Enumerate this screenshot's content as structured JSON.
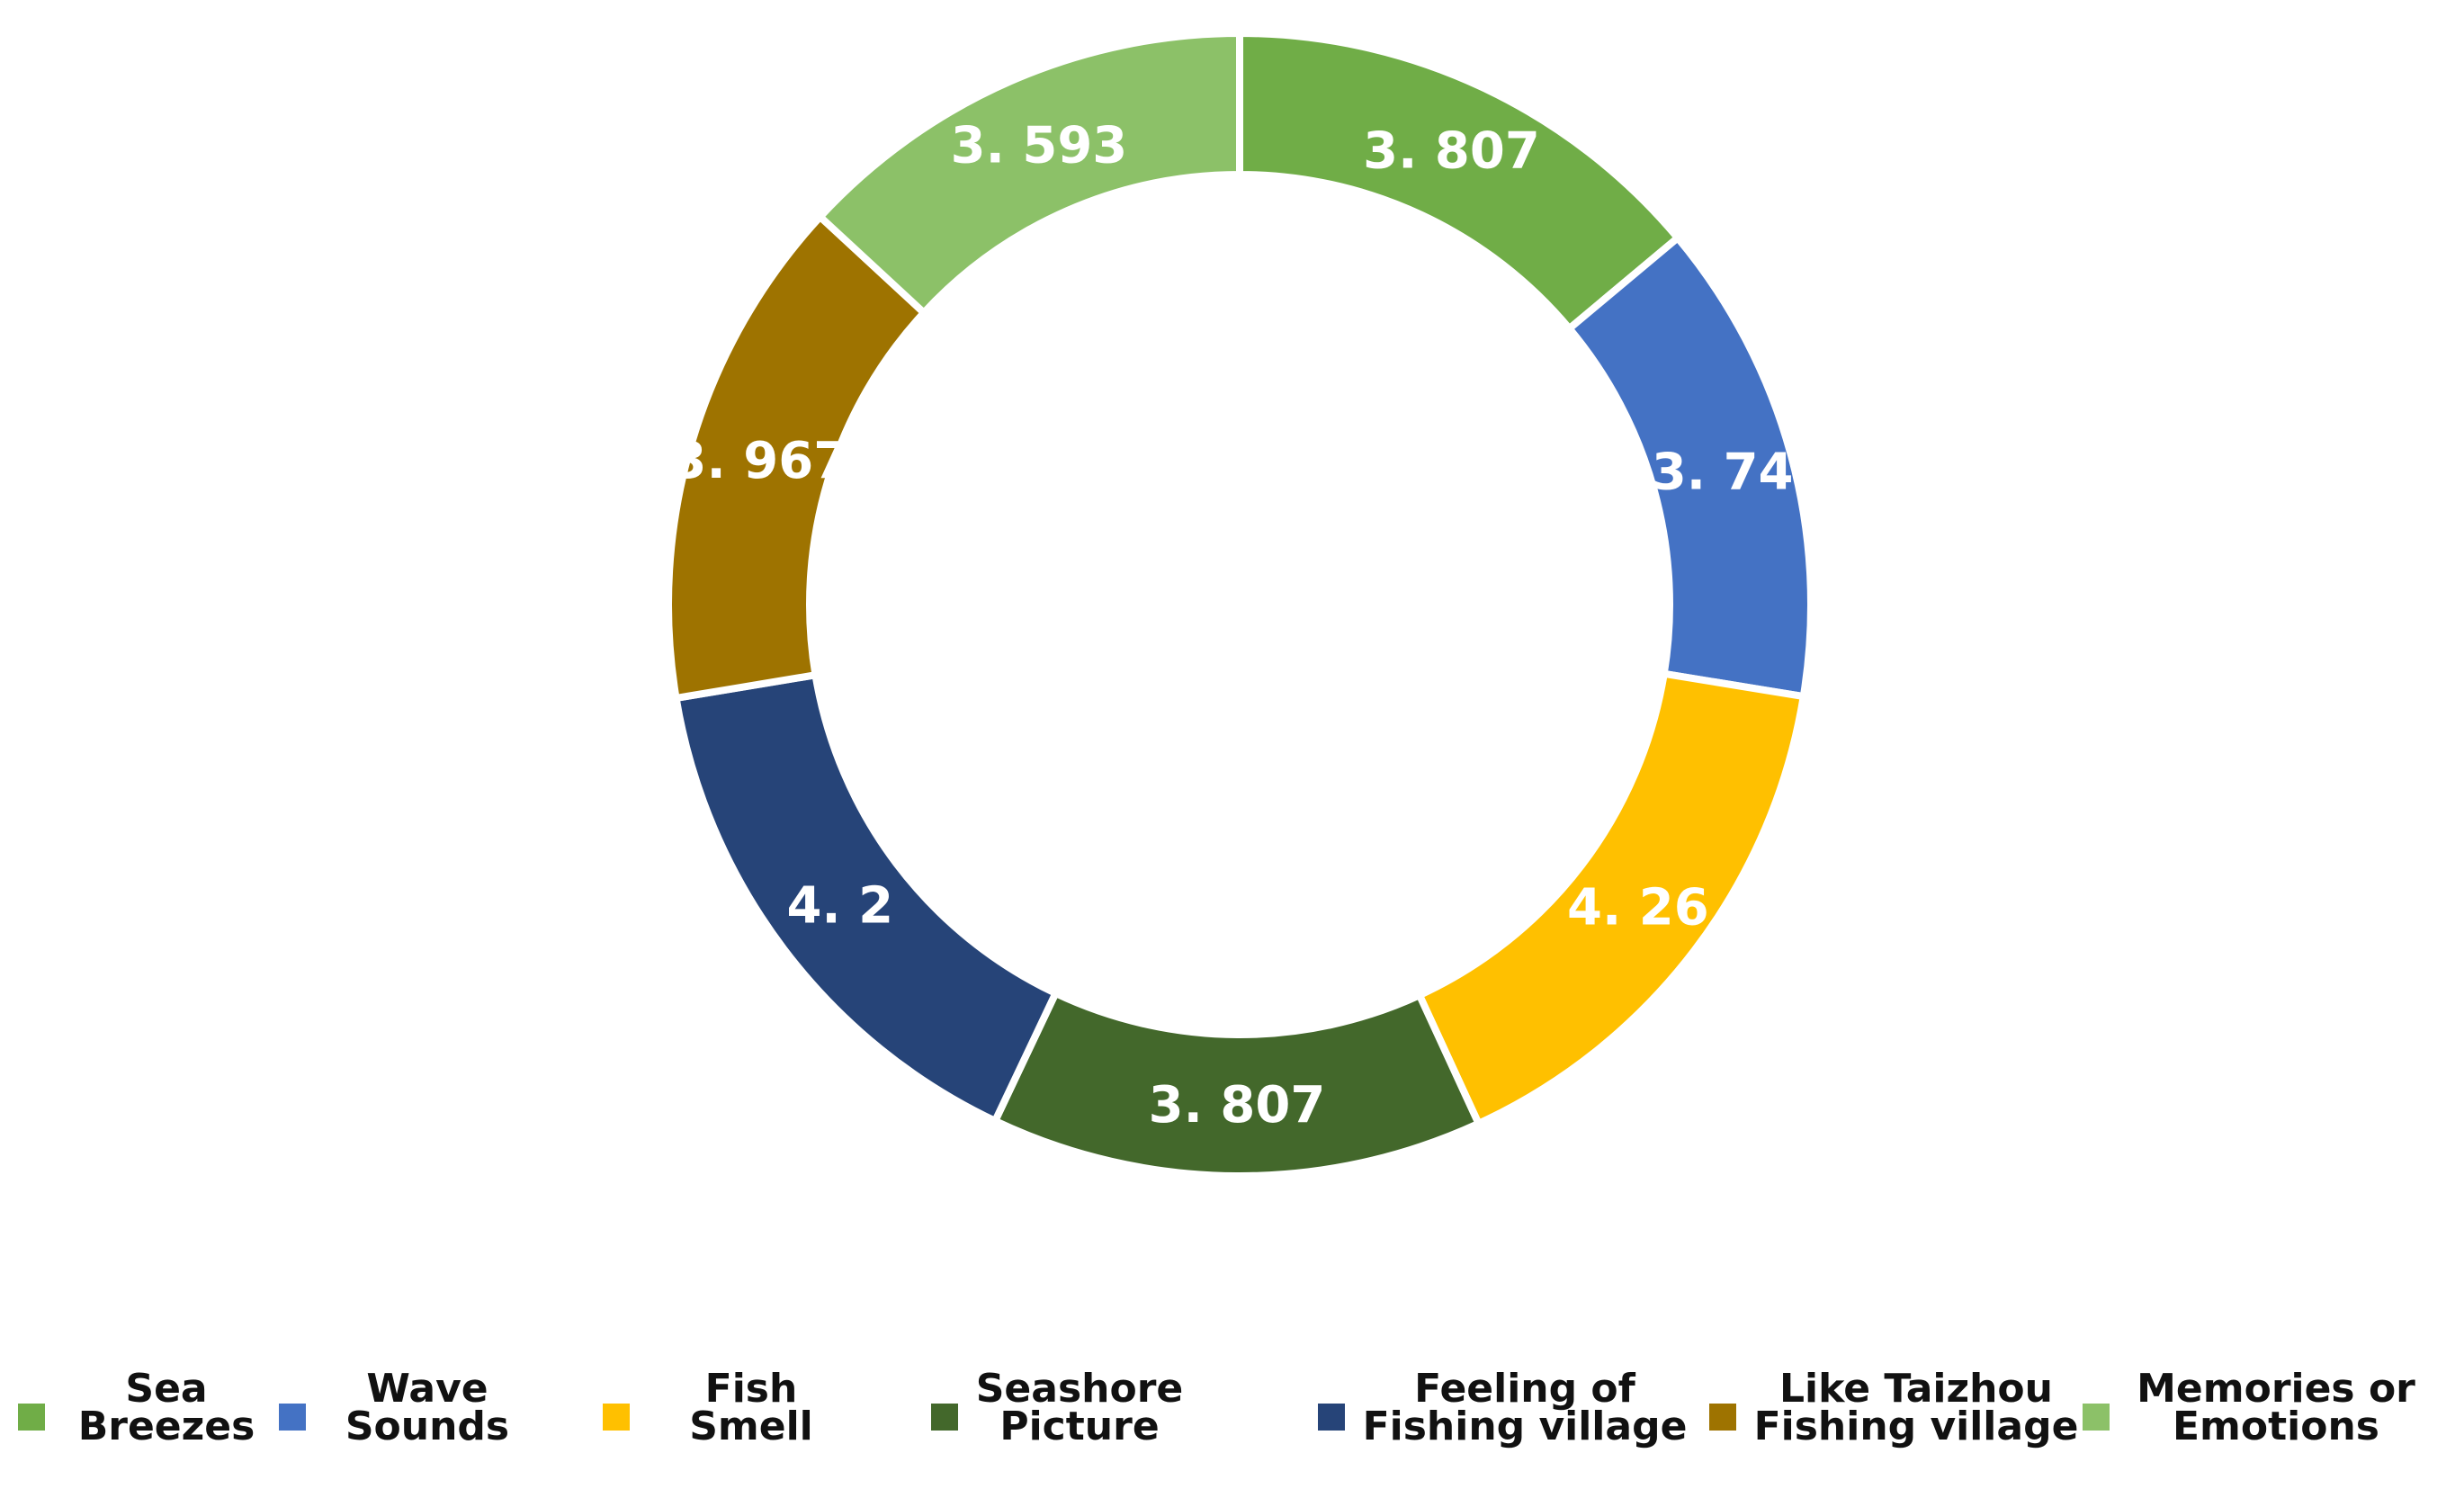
{
  "chart_data": {
    "type": "pie",
    "variant": "donut",
    "title": "",
    "categories": [
      "Sea Breezes",
      "Wave Sounds",
      "Fish Smell",
      "Seashore Picture",
      "Feeling of Fishing village",
      "Like Taizhou Fishing village",
      "Memories or Emotions"
    ],
    "values": [
      3.807,
      3.74,
      4.26,
      3.807,
      4.2,
      3.967,
      3.593
    ],
    "value_labels": [
      "3. 807",
      "3. 74",
      "4. 26",
      "3. 807",
      "4. 2",
      "3. 967",
      "3. 593"
    ],
    "colors": [
      "#70ad47",
      "#4472c4",
      "#ffc000",
      "#43682b",
      "#264478",
      "#9e7300",
      "#8cc168"
    ],
    "legend_position": "bottom",
    "legend": [
      {
        "line1": "Sea",
        "line2": "Breezes",
        "color": "#70ad47"
      },
      {
        "line1": "Wave",
        "line2": "Sounds",
        "color": "#4472c4"
      },
      {
        "line1": "Fish",
        "line2": "Smell",
        "color": "#ffc000"
      },
      {
        "line1": "Seashore",
        "line2": "Picture",
        "color": "#43682b"
      },
      {
        "line1": "Feeling of",
        "line2": "Fishing village",
        "color": "#264478"
      },
      {
        "line1": "Like Taizhou",
        "line2": "Fishing village",
        "color": "#9e7300"
      },
      {
        "line1": "Memories or",
        "line2": "Emotions",
        "color": "#8cc168"
      }
    ]
  }
}
